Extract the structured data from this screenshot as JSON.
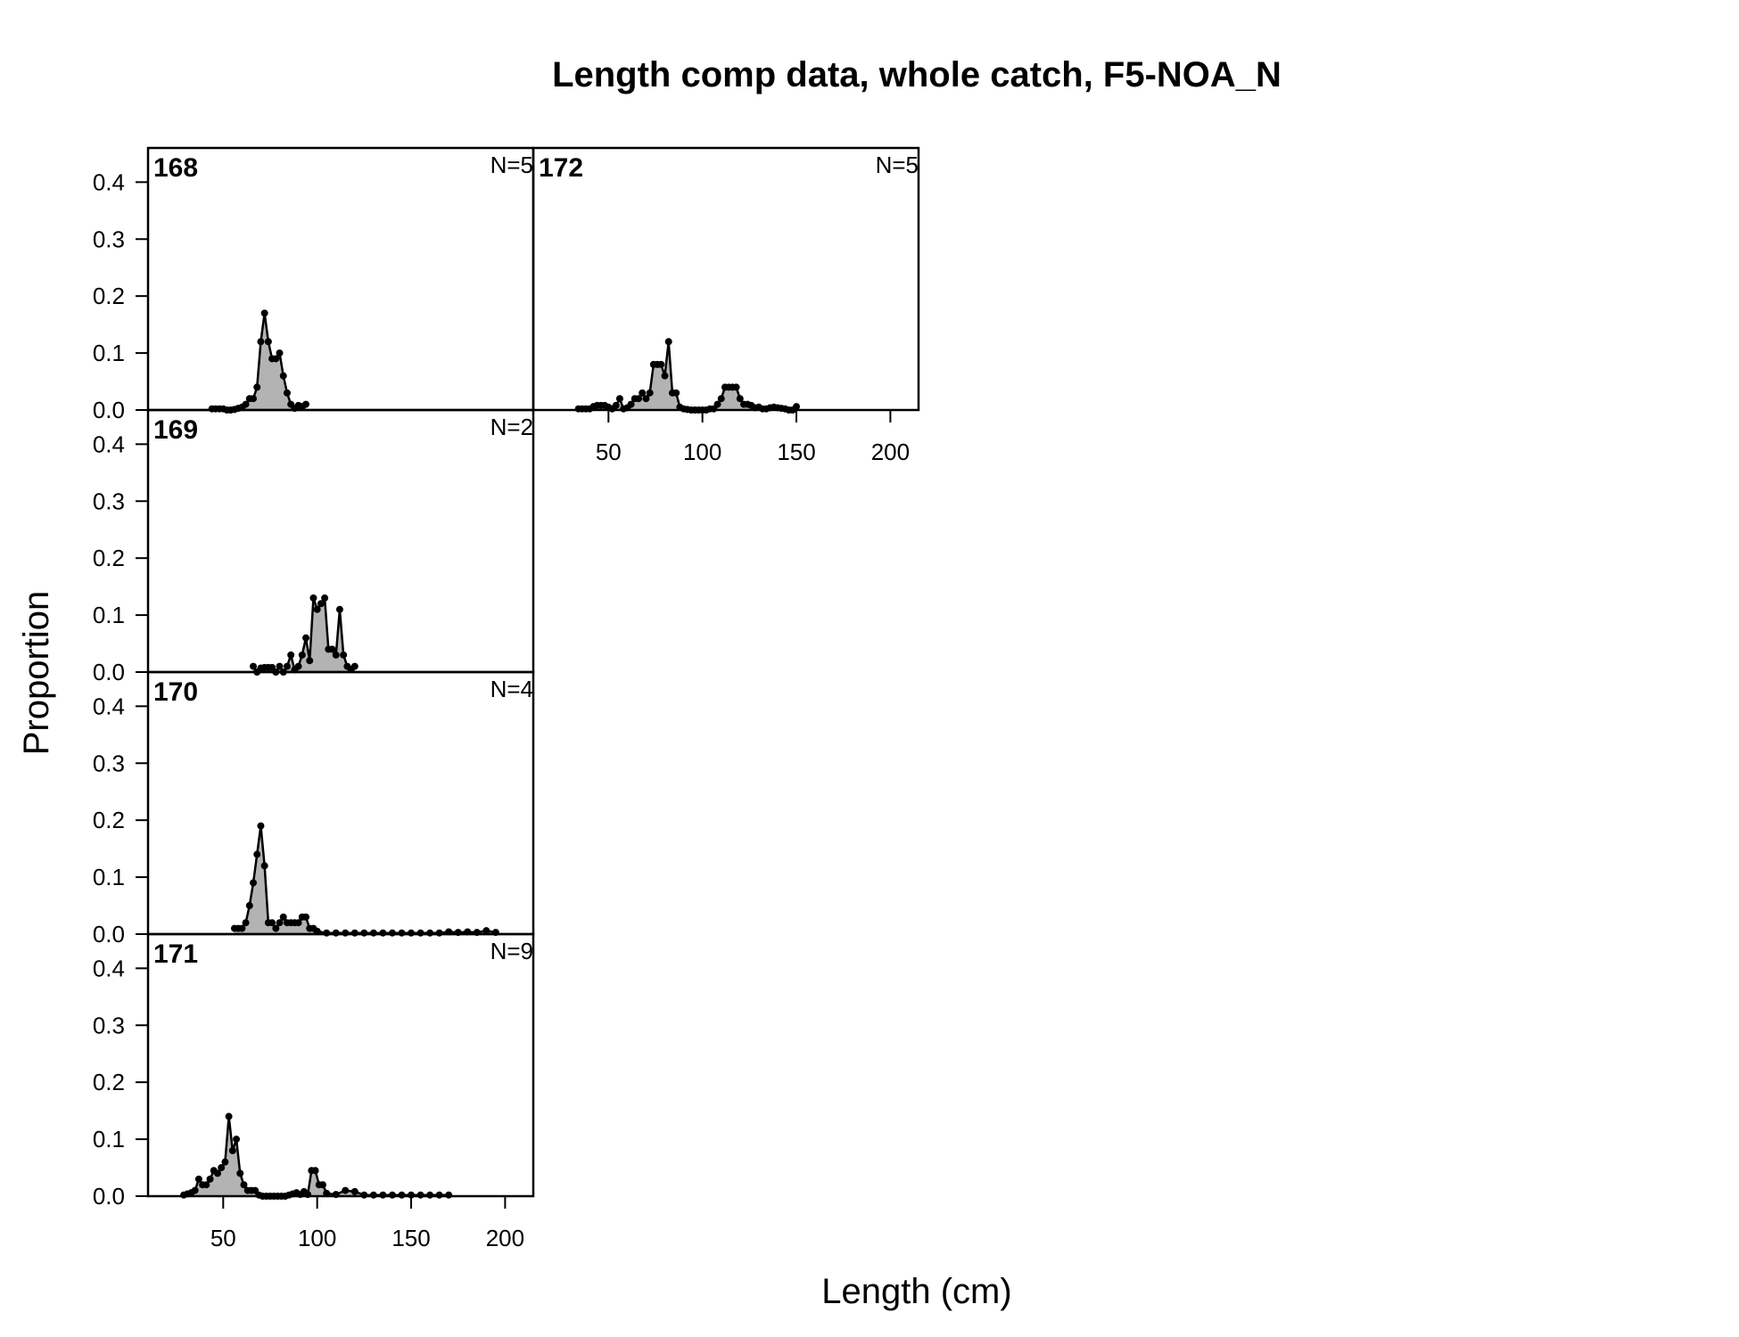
{
  "chart_data": {
    "type": "area",
    "title": "Length comp data, whole catch, F5-NOA_N",
    "xlabel": "Length (cm)",
    "ylabel": "Proportion",
    "xlim": [
      10,
      215
    ],
    "ylim": [
      0,
      0.46
    ],
    "x_ticks": [
      50,
      100,
      150,
      200
    ],
    "y_ticks": [
      0.0,
      0.1,
      0.2,
      0.3,
      0.4
    ],
    "y_tick_labels": [
      "0.0",
      "0.1",
      "0.2",
      "0.3",
      "0.4"
    ],
    "grid": false,
    "panels": [
      {
        "year": "168",
        "n_label": "N=5",
        "x": [
          44,
          46,
          48,
          50,
          52,
          54,
          56,
          58,
          60,
          62,
          64,
          66,
          68,
          70,
          72,
          74,
          76,
          78,
          80,
          82,
          84,
          86,
          88,
          90,
          92,
          94
        ],
        "y": [
          0.002,
          0.002,
          0.002,
          0.002,
          0.0,
          0.0,
          0.001,
          0.003,
          0.005,
          0.01,
          0.02,
          0.02,
          0.04,
          0.12,
          0.17,
          0.12,
          0.09,
          0.09,
          0.1,
          0.06,
          0.03,
          0.01,
          0.003,
          0.008,
          0.006,
          0.01
        ]
      },
      {
        "year": "169",
        "n_label": "N=2",
        "x": [
          66,
          68,
          70,
          72,
          74,
          76,
          78,
          80,
          82,
          84,
          86,
          88,
          90,
          92,
          94,
          96,
          98,
          100,
          102,
          104,
          106,
          108,
          110,
          112,
          114,
          116,
          118,
          120
        ],
        "y": [
          0.01,
          0.0,
          0.007,
          0.008,
          0.008,
          0.008,
          0.0,
          0.01,
          0.0,
          0.01,
          0.03,
          0.004,
          0.01,
          0.03,
          0.06,
          0.02,
          0.13,
          0.11,
          0.12,
          0.13,
          0.04,
          0.04,
          0.03,
          0.11,
          0.03,
          0.01,
          0.005,
          0.01
        ]
      },
      {
        "year": "170",
        "n_label": "N=4",
        "x": [
          56,
          58,
          60,
          62,
          64,
          66,
          68,
          70,
          72,
          74,
          76,
          78,
          80,
          82,
          84,
          86,
          88,
          90,
          92,
          94,
          96,
          98,
          100,
          105,
          110,
          115,
          120,
          125,
          130,
          135,
          140,
          145,
          150,
          155,
          160,
          165,
          170,
          175,
          180,
          185,
          190,
          195
        ],
        "y": [
          0.01,
          0.01,
          0.01,
          0.02,
          0.05,
          0.09,
          0.14,
          0.19,
          0.12,
          0.02,
          0.02,
          0.01,
          0.02,
          0.03,
          0.02,
          0.02,
          0.02,
          0.02,
          0.03,
          0.03,
          0.01,
          0.01,
          0.005,
          0.002,
          0.002,
          0.002,
          0.002,
          0.002,
          0.002,
          0.002,
          0.002,
          0.002,
          0.002,
          0.002,
          0.002,
          0.002,
          0.004,
          0.003,
          0.004,
          0.003,
          0.006,
          0.003
        ]
      },
      {
        "year": "171",
        "n_label": "N=9",
        "x": [
          29,
          31,
          33,
          35,
          37,
          39,
          41,
          43,
          45,
          47,
          49,
          51,
          53,
          55,
          57,
          59,
          61,
          63,
          65,
          67,
          69,
          71,
          73,
          75,
          77,
          79,
          81,
          83,
          85,
          87,
          89,
          91,
          93,
          95,
          97,
          99,
          101,
          103,
          105,
          110,
          115,
          120,
          125,
          130,
          135,
          140,
          145,
          150,
          155,
          160,
          165,
          170
        ],
        "y": [
          0.002,
          0.004,
          0.006,
          0.01,
          0.03,
          0.02,
          0.02,
          0.03,
          0.045,
          0.04,
          0.05,
          0.06,
          0.14,
          0.08,
          0.1,
          0.04,
          0.02,
          0.01,
          0.01,
          0.01,
          0.002,
          0.0,
          0.0,
          0.0,
          0.0,
          0.0,
          0.0,
          0.0,
          0.002,
          0.004,
          0.006,
          0.003,
          0.008,
          0.003,
          0.045,
          0.045,
          0.02,
          0.02,
          0.005,
          0.003,
          0.01,
          0.008,
          0.002,
          0.002,
          0.002,
          0.002,
          0.002,
          0.002,
          0.002,
          0.002,
          0.002,
          0.002
        ]
      },
      {
        "year": "172",
        "n_label": "N=5",
        "x": [
          34,
          36,
          38,
          40,
          42,
          44,
          46,
          48,
          50,
          52,
          54,
          56,
          58,
          60,
          62,
          64,
          66,
          68,
          70,
          72,
          74,
          76,
          78,
          80,
          82,
          84,
          86,
          88,
          90,
          92,
          94,
          96,
          98,
          100,
          102,
          104,
          106,
          108,
          110,
          112,
          114,
          116,
          118,
          120,
          122,
          124,
          126,
          128,
          130,
          132,
          134,
          136,
          138,
          140,
          142,
          144,
          146,
          148,
          150
        ],
        "y": [
          0.002,
          0.002,
          0.002,
          0.002,
          0.006,
          0.008,
          0.008,
          0.008,
          0.005,
          0.002,
          0.008,
          0.02,
          0.002,
          0.004,
          0.01,
          0.02,
          0.02,
          0.03,
          0.02,
          0.03,
          0.08,
          0.08,
          0.08,
          0.06,
          0.12,
          0.03,
          0.03,
          0.005,
          0.002,
          0.001,
          0.0,
          0.0,
          0.0,
          0.0,
          0.0,
          0.002,
          0.002,
          0.01,
          0.02,
          0.04,
          0.04,
          0.04,
          0.04,
          0.02,
          0.01,
          0.01,
          0.008,
          0.004,
          0.005,
          0.002,
          0.002,
          0.004,
          0.005,
          0.004,
          0.003,
          0.002,
          0.0,
          0.0,
          0.006
        ]
      }
    ]
  }
}
